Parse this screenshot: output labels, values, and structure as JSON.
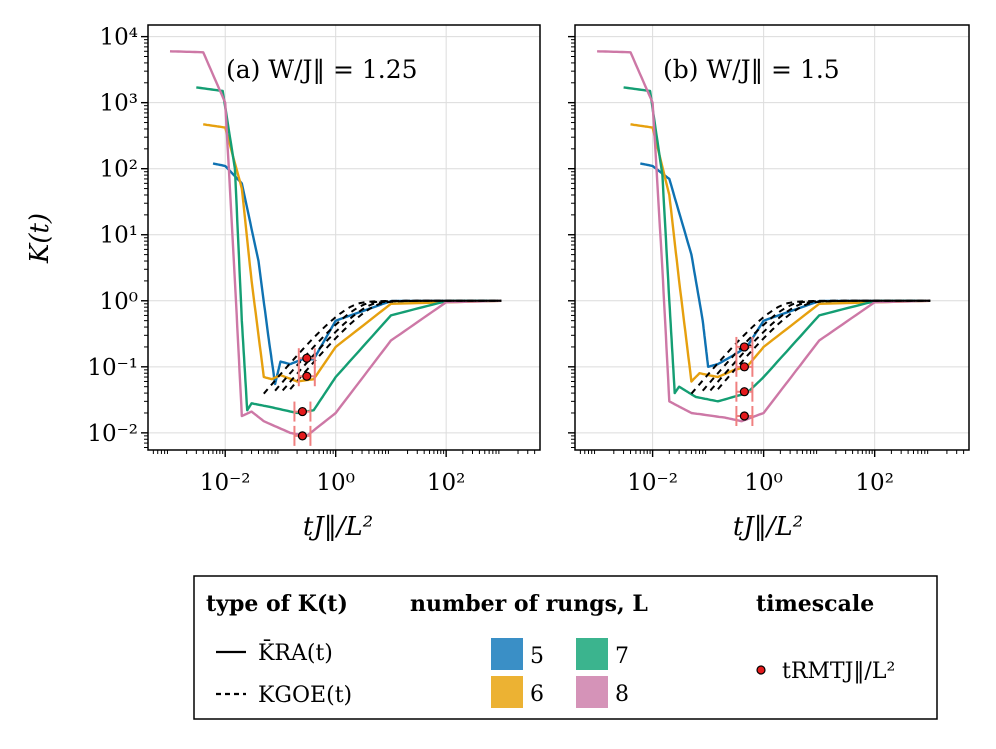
{
  "colors": {
    "5": "#0f72b2",
    "6": "#e6a00e",
    "7": "#149e73",
    "8": "#cd78a6",
    "swatch5": "#3a8fc6",
    "swatch6": "#ecb233",
    "swatch7": "#3bb48e",
    "swatch8": "#d593b8",
    "marker": "#e31a1c",
    "errbar": "#f08080"
  },
  "axes": {
    "ylabel": "K(t)",
    "xlabel": "tJ‖/L²",
    "xscale": "log",
    "yscale": "log",
    "xlim": [
      0.0004,
      5000
    ],
    "ylim": [
      0.0055,
      15000
    ],
    "xticks": [
      0.01,
      1,
      100
    ],
    "xticklabels": [
      "10⁻²",
      "10⁰",
      "10²"
    ],
    "yticks": [
      0.01,
      0.1,
      1,
      10,
      100,
      1000,
      10000
    ],
    "yticklabels": [
      "10⁻²",
      "10⁻¹",
      "10⁰",
      "10¹",
      "10²",
      "10³",
      "10⁴"
    ],
    "grid": true
  },
  "panels": [
    {
      "title": "(a)  W/J‖ = 1.25"
    },
    {
      "title": "(b)  W/J‖ = 1.5"
    }
  ],
  "legend": {
    "type_header": "type of K(t)",
    "type_items": [
      "K̄RA(t)",
      "KGOE(t)"
    ],
    "rungs_header": "number of rungs, L",
    "rung_labels": [
      "5",
      "6",
      "7",
      "8"
    ],
    "timescale_header": "timescale",
    "timescale_item": "tRMTJ‖/L²"
  },
  "chart_data": [
    {
      "type": "line",
      "title": "(a)  W/J‖ = 1.25",
      "xlabel": "tJ‖/L²",
      "ylabel": "K(t)",
      "xscale": "log",
      "yscale": "log",
      "xlim": [
        0.0004,
        5000
      ],
      "ylim": [
        0.0055,
        15000
      ],
      "series": [
        {
          "name": "5",
          "kind": "RA",
          "points": [
            [
              0.006,
              120
            ],
            [
              0.01,
              110
            ],
            [
              0.02,
              60
            ],
            [
              0.04,
              4
            ],
            [
              0.06,
              0.3
            ],
            [
              0.08,
              0.055
            ],
            [
              0.1,
              0.12
            ],
            [
              0.15,
              0.11
            ],
            [
              0.25,
              0.13
            ],
            [
              0.4,
              0.13
            ],
            [
              1,
              0.5
            ],
            [
              10,
              0.99
            ],
            [
              1000,
              1
            ]
          ]
        },
        {
          "name": "6",
          "kind": "RA",
          "points": [
            [
              0.004,
              470
            ],
            [
              0.01,
              420
            ],
            [
              0.02,
              50
            ],
            [
              0.03,
              2
            ],
            [
              0.05,
              0.07
            ],
            [
              0.07,
              0.065
            ],
            [
              0.1,
              0.075
            ],
            [
              0.2,
              0.06
            ],
            [
              0.4,
              0.065
            ],
            [
              1,
              0.2
            ],
            [
              10,
              0.9
            ],
            [
              1000,
              1
            ]
          ]
        },
        {
          "name": "7",
          "kind": "RA",
          "points": [
            [
              0.003,
              1700
            ],
            [
              0.009,
              1500
            ],
            [
              0.015,
              100
            ],
            [
              0.02,
              0.5
            ],
            [
              0.025,
              0.022
            ],
            [
              0.03,
              0.028
            ],
            [
              0.06,
              0.025
            ],
            [
              0.2,
              0.02
            ],
            [
              0.4,
              0.022
            ],
            [
              1,
              0.07
            ],
            [
              10,
              0.6
            ],
            [
              100,
              0.99
            ],
            [
              1000,
              1
            ]
          ]
        },
        {
          "name": "8",
          "kind": "RA",
          "points": [
            [
              0.001,
              6000
            ],
            [
              0.004,
              5800
            ],
            [
              0.01,
              1000
            ],
            [
              0.015,
              2
            ],
            [
              0.02,
              0.018
            ],
            [
              0.03,
              0.021
            ],
            [
              0.05,
              0.015
            ],
            [
              0.15,
              0.01
            ],
            [
              0.3,
              0.009
            ],
            [
              1,
              0.02
            ],
            [
              10,
              0.25
            ],
            [
              100,
              0.95
            ],
            [
              1000,
              1
            ]
          ]
        }
      ],
      "goe": [
        {
          "name": "5",
          "x_start": 0.05
        },
        {
          "name": "6",
          "x_start": 0.08
        },
        {
          "name": "7",
          "x_start": 0.11
        },
        {
          "name": "8",
          "x_start": 0.15
        }
      ],
      "t_rmt": [
        {
          "name": "5",
          "x": 0.3,
          "y": 0.135
        },
        {
          "name": "6",
          "x": 0.3,
          "y": 0.072
        },
        {
          "name": "7",
          "x": 0.25,
          "y": 0.021
        },
        {
          "name": "8",
          "x": 0.25,
          "y": 0.009
        }
      ]
    },
    {
      "type": "line",
      "title": "(b)  W/J‖ = 1.5",
      "xlabel": "tJ‖/L²",
      "ylabel": "K(t)",
      "xscale": "log",
      "yscale": "log",
      "xlim": [
        0.0004,
        5000
      ],
      "ylim": [
        0.0055,
        15000
      ],
      "series": [
        {
          "name": "5",
          "kind": "RA",
          "points": [
            [
              0.006,
              120
            ],
            [
              0.01,
              110
            ],
            [
              0.02,
              70
            ],
            [
              0.05,
              5
            ],
            [
              0.08,
              0.5
            ],
            [
              0.1,
              0.1
            ],
            [
              0.15,
              0.11
            ],
            [
              0.25,
              0.14
            ],
            [
              0.5,
              0.2
            ],
            [
              1,
              0.5
            ],
            [
              10,
              0.99
            ],
            [
              1000,
              1
            ]
          ]
        },
        {
          "name": "6",
          "kind": "RA",
          "points": [
            [
              0.004,
              470
            ],
            [
              0.01,
              420
            ],
            [
              0.02,
              40
            ],
            [
              0.03,
              2
            ],
            [
              0.05,
              0.06
            ],
            [
              0.07,
              0.08
            ],
            [
              0.15,
              0.07
            ],
            [
              0.3,
              0.09
            ],
            [
              0.5,
              0.1
            ],
            [
              1,
              0.2
            ],
            [
              10,
              0.9
            ],
            [
              1000,
              1
            ]
          ]
        },
        {
          "name": "7",
          "kind": "RA",
          "points": [
            [
              0.003,
              1700
            ],
            [
              0.009,
              1500
            ],
            [
              0.015,
              80
            ],
            [
              0.02,
              1
            ],
            [
              0.025,
              0.04
            ],
            [
              0.03,
              0.05
            ],
            [
              0.06,
              0.035
            ],
            [
              0.15,
              0.03
            ],
            [
              0.5,
              0.04
            ],
            [
              1,
              0.07
            ],
            [
              10,
              0.6
            ],
            [
              100,
              0.99
            ],
            [
              1000,
              1
            ]
          ]
        },
        {
          "name": "8",
          "kind": "RA",
          "points": [
            [
              0.001,
              6000
            ],
            [
              0.004,
              5800
            ],
            [
              0.01,
              1000
            ],
            [
              0.015,
              3
            ],
            [
              0.02,
              0.03
            ],
            [
              0.03,
              0.025
            ],
            [
              0.05,
              0.02
            ],
            [
              0.2,
              0.017
            ],
            [
              0.4,
              0.015
            ],
            [
              1,
              0.02
            ],
            [
              10,
              0.25
            ],
            [
              100,
              0.95
            ],
            [
              1000,
              1
            ]
          ]
        }
      ],
      "goe": [
        {
          "name": "5",
          "x_start": 0.05
        },
        {
          "name": "6",
          "x_start": 0.08
        },
        {
          "name": "7",
          "x_start": 0.11
        },
        {
          "name": "8",
          "x_start": 0.15
        }
      ],
      "t_rmt": [
        {
          "name": "5",
          "x": 0.45,
          "y": 0.2
        },
        {
          "name": "6",
          "x": 0.45,
          "y": 0.1
        },
        {
          "name": "7",
          "x": 0.45,
          "y": 0.042
        },
        {
          "name": "8",
          "x": 0.45,
          "y": 0.018
        }
      ]
    }
  ]
}
